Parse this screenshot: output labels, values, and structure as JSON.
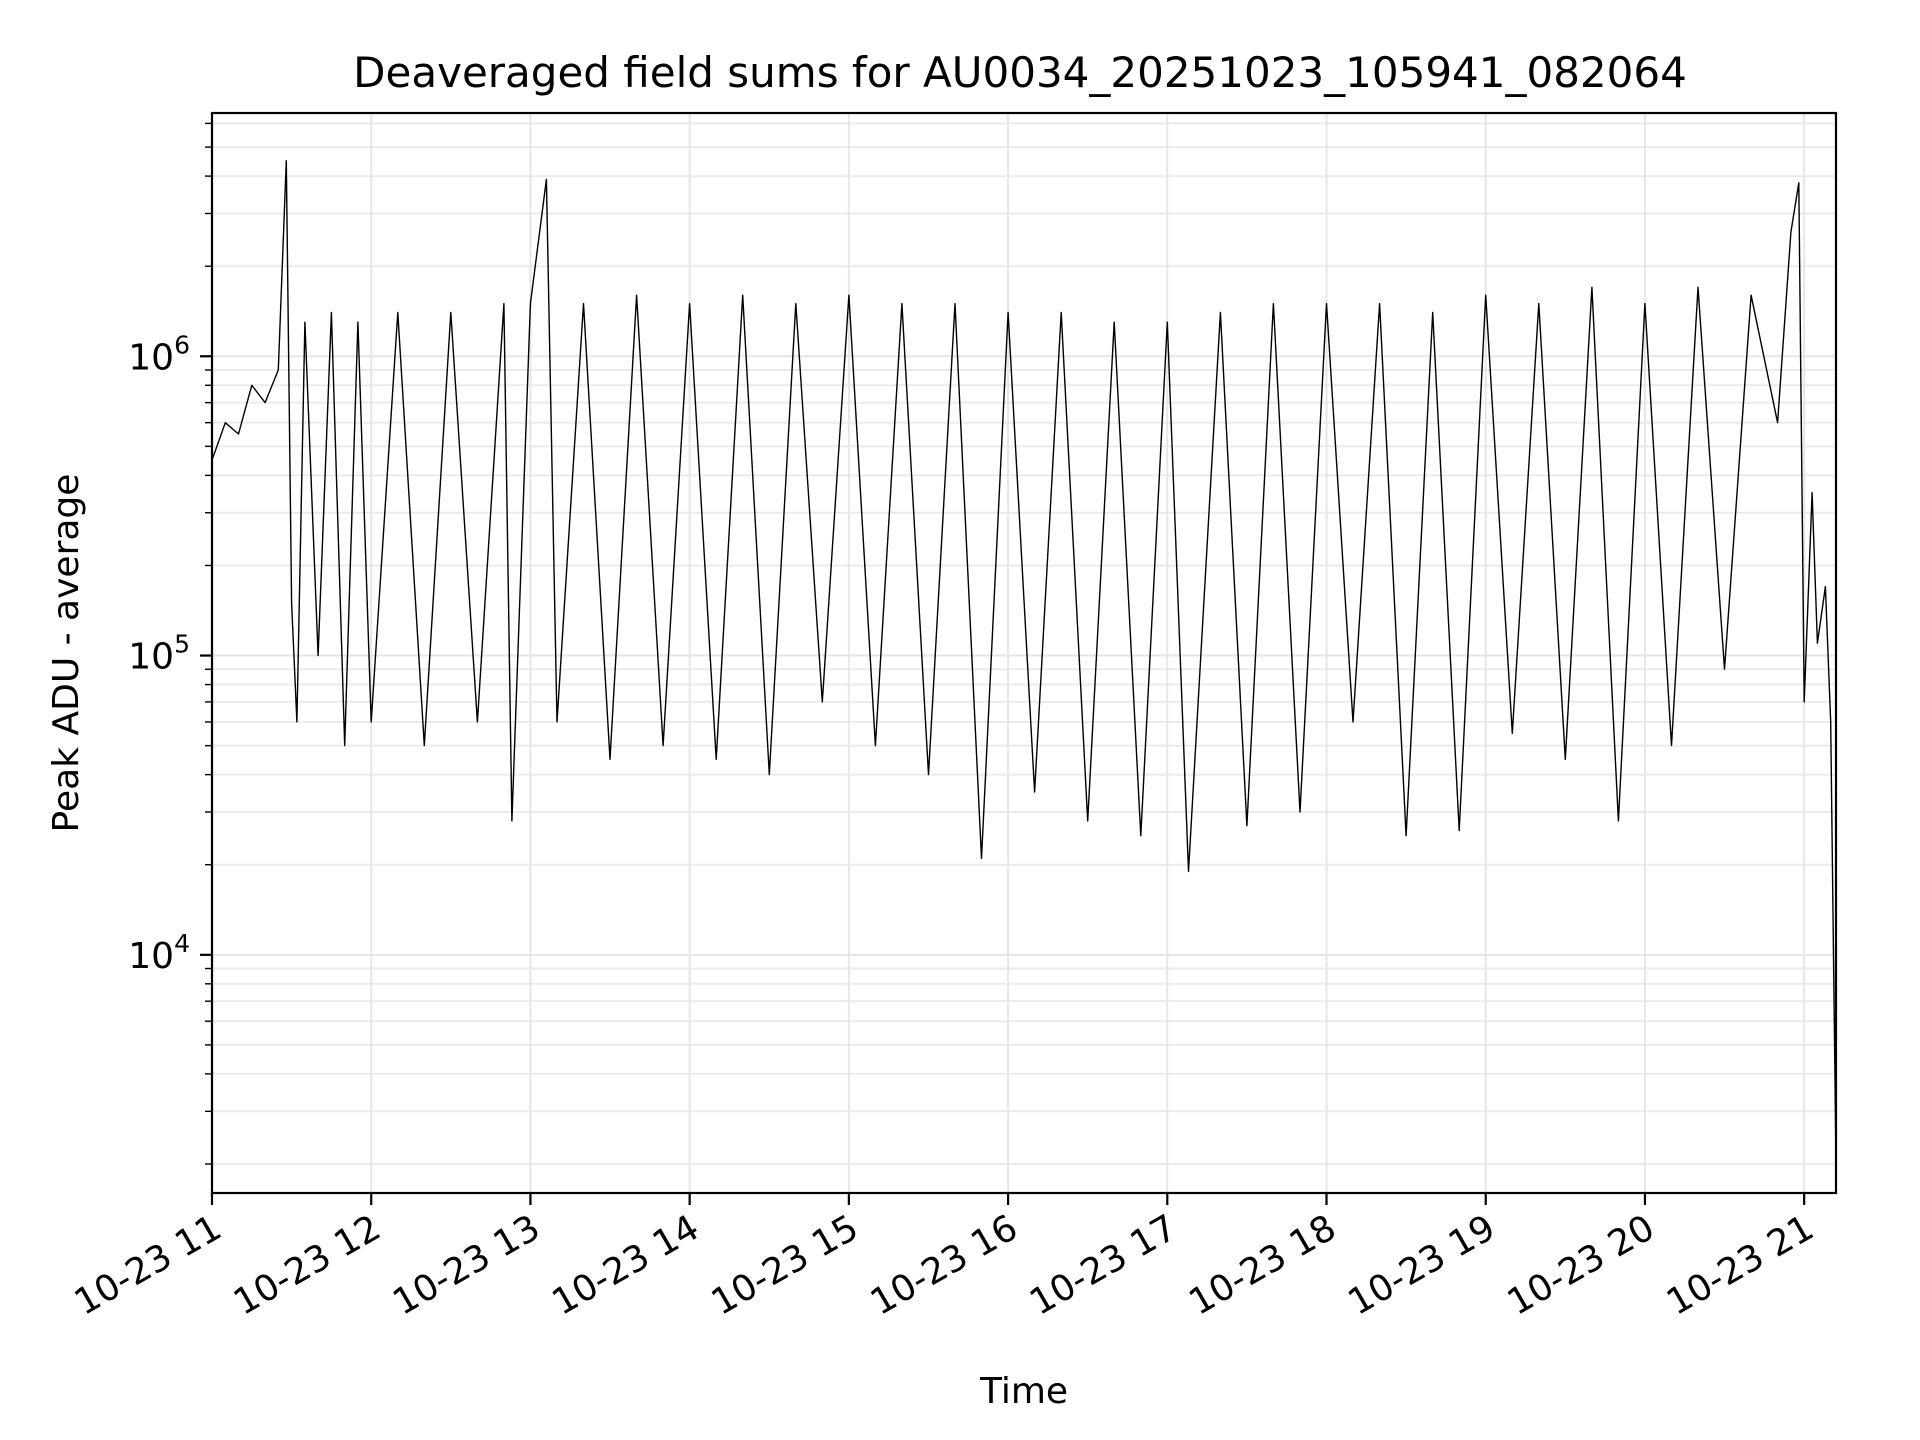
{
  "chart_data": {
    "type": "line",
    "title": "Deaveraged field sums for AU0034_20251023_105941_082064",
    "xlabel": "Time",
    "ylabel": "Peak ADU - average",
    "x_scale": "time",
    "y_scale": "log",
    "xlim": [
      "2025-10-23 11:00",
      "2025-10-23 21:12"
    ],
    "ylim": [
      1600,
      6500000
    ],
    "x_ticks": [
      {
        "value": "2025-10-23 11:00",
        "label": "10-23 11"
      },
      {
        "value": "2025-10-23 12:00",
        "label": "10-23 12"
      },
      {
        "value": "2025-10-23 13:00",
        "label": "10-23 13"
      },
      {
        "value": "2025-10-23 14:00",
        "label": "10-23 14"
      },
      {
        "value": "2025-10-23 15:00",
        "label": "10-23 15"
      },
      {
        "value": "2025-10-23 16:00",
        "label": "10-23 16"
      },
      {
        "value": "2025-10-23 17:00",
        "label": "10-23 17"
      },
      {
        "value": "2025-10-23 18:00",
        "label": "10-23 18"
      },
      {
        "value": "2025-10-23 19:00",
        "label": "10-23 19"
      },
      {
        "value": "2025-10-23 20:00",
        "label": "10-23 20"
      },
      {
        "value": "2025-10-23 21:00",
        "label": "10-23 21"
      }
    ],
    "y_ticks": [
      {
        "value": 10000,
        "base": "10",
        "exp": "4"
      },
      {
        "value": 100000,
        "base": "10",
        "exp": "5"
      },
      {
        "value": 1000000,
        "base": "10",
        "exp": "6"
      }
    ],
    "grid": true,
    "grid_minor_y": true,
    "line_color": "#000000",
    "series": [
      {
        "x": [
          "2025-10-23 11:00",
          "2025-10-23 11:05",
          "2025-10-23 11:10",
          "2025-10-23 11:15",
          "2025-10-23 11:20",
          "2025-10-23 11:25",
          "2025-10-23 11:28",
          "2025-10-23 11:30",
          "2025-10-23 11:32",
          "2025-10-23 11:35",
          "2025-10-23 11:40",
          "2025-10-23 11:45",
          "2025-10-23 11:50",
          "2025-10-23 11:55",
          "2025-10-23 12:00",
          "2025-10-23 12:10",
          "2025-10-23 12:20",
          "2025-10-23 12:30",
          "2025-10-23 12:40",
          "2025-10-23 12:50",
          "2025-10-23 12:53",
          "2025-10-23 13:00",
          "2025-10-23 13:06",
          "2025-10-23 13:10",
          "2025-10-23 13:20",
          "2025-10-23 13:30",
          "2025-10-23 13:40",
          "2025-10-23 13:50",
          "2025-10-23 14:00",
          "2025-10-23 14:10",
          "2025-10-23 14:20",
          "2025-10-23 14:30",
          "2025-10-23 14:40",
          "2025-10-23 14:50",
          "2025-10-23 15:00",
          "2025-10-23 15:10",
          "2025-10-23 15:20",
          "2025-10-23 15:30",
          "2025-10-23 15:40",
          "2025-10-23 15:50",
          "2025-10-23 16:00",
          "2025-10-23 16:10",
          "2025-10-23 16:20",
          "2025-10-23 16:30",
          "2025-10-23 16:40",
          "2025-10-23 16:50",
          "2025-10-23 17:00",
          "2025-10-23 17:08",
          "2025-10-23 17:20",
          "2025-10-23 17:30",
          "2025-10-23 17:40",
          "2025-10-23 17:50",
          "2025-10-23 18:00",
          "2025-10-23 18:10",
          "2025-10-23 18:20",
          "2025-10-23 18:30",
          "2025-10-23 18:40",
          "2025-10-23 18:50",
          "2025-10-23 19:00",
          "2025-10-23 19:10",
          "2025-10-23 19:20",
          "2025-10-23 19:30",
          "2025-10-23 19:40",
          "2025-10-23 19:50",
          "2025-10-23 20:00",
          "2025-10-23 20:10",
          "2025-10-23 20:20",
          "2025-10-23 20:30",
          "2025-10-23 20:40",
          "2025-10-23 20:50",
          "2025-10-23 20:55",
          "2025-10-23 20:58",
          "2025-10-23 21:00",
          "2025-10-23 21:03",
          "2025-10-23 21:05",
          "2025-10-23 21:08",
          "2025-10-23 21:10",
          "2025-10-23 21:12"
        ],
        "y": [
          450000,
          600000,
          550000,
          800000,
          700000,
          900000,
          4500000,
          150000,
          60000,
          1300000,
          100000,
          1400000,
          50000,
          1300000,
          60000,
          1400000,
          50000,
          1400000,
          60000,
          1500000,
          28000,
          1500000,
          3900000,
          60000,
          1500000,
          45000,
          1600000,
          50000,
          1500000,
          45000,
          1600000,
          40000,
          1500000,
          70000,
          1600000,
          50000,
          1500000,
          40000,
          1500000,
          21000,
          1400000,
          35000,
          1400000,
          28000,
          1300000,
          25000,
          1300000,
          19000,
          1400000,
          27000,
          1500000,
          30000,
          1500000,
          60000,
          1500000,
          25000,
          1400000,
          26000,
          1600000,
          55000,
          1500000,
          45000,
          1700000,
          28000,
          1500000,
          50000,
          1700000,
          90000,
          1600000,
          600000,
          2600000,
          3800000,
          70000,
          350000,
          110000,
          170000,
          60000,
          2000
        ]
      }
    ]
  }
}
